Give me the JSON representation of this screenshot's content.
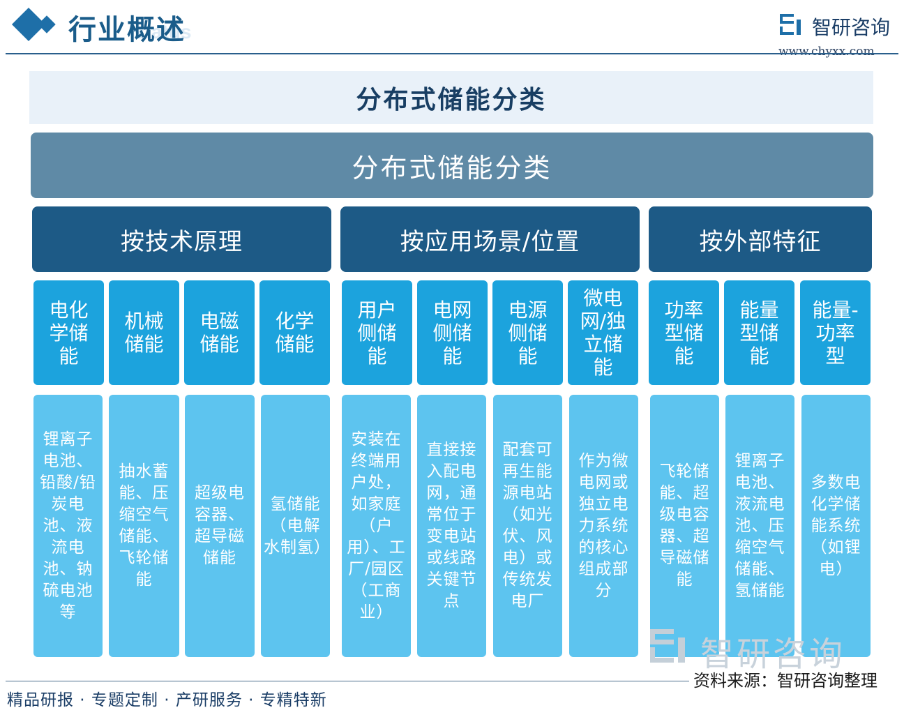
{
  "header": {
    "title": "行业概述",
    "title_ghost": "status",
    "logo_name": "智研咨询",
    "logo_url": "www.chyxx.com"
  },
  "main_title": "分布式储能分类",
  "diagram": {
    "root": "分布式储能分类",
    "categories": [
      {
        "label": "按技术原理",
        "types": [
          {
            "label": "电化学储能",
            "description": "锂离子电池、铅酸/铅炭电池、液流电池、钠硫电池等"
          },
          {
            "label": "机械储能",
            "description": "抽水蓄能、压缩空气储能、飞轮储能"
          },
          {
            "label": "电磁储能",
            "description": "超级电容器、超导磁储能"
          },
          {
            "label": "化学储能",
            "description": "氢储能（电解水制氢）"
          }
        ]
      },
      {
        "label": "按应用场景/位置",
        "types": [
          {
            "label": "用户侧储能",
            "description": "安装在终端用户处，如家庭（户用）、工厂/园区（工商业）"
          },
          {
            "label": "电网侧储能",
            "description": "直接接入配电网，通常位于变电站或线路关键节点"
          },
          {
            "label": "电源侧储能",
            "description": "配套可再生能源电站（如光伏、风电）或传统发电厂"
          },
          {
            "label": "微电网/独立储能",
            "description": "作为微电网或独立电力系统的核心组成部分"
          }
        ]
      },
      {
        "label": "按外部特征",
        "types": [
          {
            "label": "功率型储能",
            "description": "飞轮储能、超级电容器、超导磁储能"
          },
          {
            "label": "能量型储能",
            "description": "锂离子电池、液流电池、压缩空气储能、氢储能"
          },
          {
            "label": "能量-功率型",
            "description": "多数电化学储能系统（如锂电）"
          }
        ]
      }
    ]
  },
  "watermark": "智研咨询",
  "footer": {
    "source": "资料来源：智研咨询整理",
    "tagline": "精品研报 · 专题定制 · 产研服务 · 专精特新"
  },
  "colors": {
    "root": "#5f8aa6",
    "category": "#1d5a86",
    "type": "#1ca3dd",
    "description": "#5dc4ef",
    "title_band": "#e9f1f9"
  }
}
